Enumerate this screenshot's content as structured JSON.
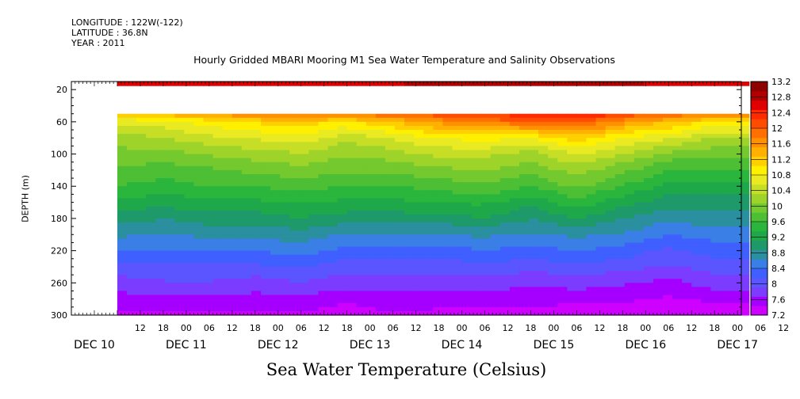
{
  "meta": {
    "longitude": "LONGITUDE : 122W(-122)",
    "latitude": "LATITUDE : 36.8N",
    "year": "YEAR : 2011"
  },
  "colors": {
    "scale": [
      "#ce00ff",
      "#a500ff",
      "#7c3cff",
      "#5a55ff",
      "#3f5fff",
      "#3a7fe6",
      "#2a8f9f",
      "#1e9a6a",
      "#1ea84a",
      "#2ab53c",
      "#4cbf34",
      "#74c92e",
      "#9ed42a",
      "#c6df26",
      "#eaea22",
      "#fff000",
      "#ffd000",
      "#ffb000",
      "#ff9000",
      "#ff7000",
      "#ff4c00",
      "#ff2a00",
      "#e00000",
      "#b00000",
      "#8c0000"
    ]
  },
  "chart_data": {
    "type": "heatmap",
    "title": "Hourly Gridded MBARI Mooring M1 Sea Water Temperature and Salinity Observations",
    "xlabel": "Sea Water Temperature (Celsius)",
    "ylabel": "DEPTH (m)",
    "ylim": [
      300,
      10
    ],
    "y_ticks": [
      20,
      60,
      100,
      140,
      180,
      220,
      260,
      300
    ],
    "hour_ticks": [
      "12",
      "18",
      "00",
      "06",
      "12",
      "18",
      "00",
      "06",
      "12",
      "18",
      "00",
      "06",
      "12",
      "18",
      "00",
      "06",
      "12",
      "18",
      "00",
      "06",
      "12",
      "18",
      "00",
      "06",
      "12",
      "18",
      "00",
      "06",
      "12",
      "18",
      "00",
      "06"
    ],
    "day_labels": [
      "DEC 10",
      "DEC 11",
      "DEC 12",
      "DEC 13",
      "DEC 14",
      "DEC 15",
      "DEC 16",
      "DEC 17"
    ],
    "colorbar_ticks": [
      "13.2",
      "12.8",
      "12.4",
      "12",
      "11.6",
      "11.2",
      "10.8",
      "10.4",
      "10",
      "9.6",
      "9.2",
      "8.8",
      "8.4",
      "8",
      "7.6",
      "7.2"
    ],
    "colorbar_min": 7.2,
    "colorbar_max": 13.2,
    "data_start_hour": 78,
    "depths": [
      10,
      20,
      40,
      50,
      60,
      80,
      100,
      120,
      140,
      160,
      180,
      200,
      220,
      240,
      260,
      280,
      300
    ],
    "hours": [
      78,
      90,
      102,
      114,
      126,
      138,
      150,
      162,
      174,
      186,
      198,
      210,
      222,
      234
    ],
    "temperature": [
      [
        12.6,
        12.5,
        12.6,
        12.6,
        12.6,
        12.7,
        12.7,
        12.8,
        12.9,
        12.9,
        12.9,
        12.8,
        12.7,
        12.6
      ],
      [
        12.5,
        12.5,
        12.5,
        12.6,
        12.6,
        12.6,
        12.7,
        12.8,
        12.8,
        12.9,
        12.8,
        12.7,
        12.6,
        12.5
      ],
      [
        null,
        null,
        null,
        null,
        null,
        null,
        null,
        null,
        null,
        null,
        null,
        null,
        null,
        null
      ],
      [
        11.2,
        11.4,
        11.6,
        11.8,
        11.9,
        11.8,
        12.0,
        12.2,
        12.3,
        12.4,
        12.6,
        12.2,
        12.0,
        11.8
      ],
      [
        10.6,
        10.7,
        10.9,
        11.1,
        11.2,
        11.0,
        11.3,
        11.6,
        11.8,
        12.0,
        12.1,
        11.6,
        11.3,
        11.0
      ],
      [
        10.2,
        10.3,
        10.5,
        10.6,
        10.7,
        10.4,
        10.6,
        10.8,
        10.9,
        10.8,
        11.2,
        10.8,
        10.6,
        10.3
      ],
      [
        10.0,
        10.0,
        10.1,
        10.2,
        10.3,
        10.1,
        10.2,
        10.4,
        10.4,
        10.2,
        10.6,
        10.3,
        10.0,
        9.9
      ],
      [
        9.8,
        9.7,
        9.8,
        9.9,
        10.0,
        9.9,
        9.9,
        10.0,
        10.1,
        9.9,
        10.2,
        9.9,
        9.6,
        9.6
      ],
      [
        9.6,
        9.5,
        9.6,
        9.6,
        9.7,
        9.6,
        9.6,
        9.7,
        9.8,
        9.6,
        9.9,
        9.6,
        9.3,
        9.3
      ],
      [
        9.3,
        9.2,
        9.3,
        9.3,
        9.4,
        9.3,
        9.3,
        9.4,
        9.4,
        9.2,
        9.5,
        9.2,
        9.0,
        9.0
      ],
      [
        9.0,
        8.9,
        9.0,
        9.0,
        9.1,
        9.0,
        9.0,
        9.0,
        9.1,
        8.9,
        9.1,
        8.9,
        8.7,
        8.8
      ],
      [
        8.7,
        8.6,
        8.7,
        8.7,
        8.8,
        8.6,
        8.6,
        8.6,
        8.7,
        8.6,
        8.7,
        8.6,
        8.4,
        8.5
      ],
      [
        8.4,
        8.4,
        8.4,
        8.4,
        8.5,
        8.3,
        8.3,
        8.3,
        8.4,
        8.3,
        8.4,
        8.3,
        8.1,
        8.3
      ],
      [
        8.1,
        8.1,
        8.1,
        8.1,
        8.2,
        8.0,
        8.0,
        8.0,
        8.1,
        8.0,
        8.1,
        8.0,
        7.9,
        8.0
      ],
      [
        7.8,
        7.9,
        7.9,
        7.8,
        7.9,
        7.8,
        7.8,
        7.8,
        7.8,
        7.7,
        7.8,
        7.7,
        7.6,
        7.8
      ],
      [
        7.6,
        7.6,
        7.6,
        7.6,
        7.6,
        7.5,
        7.6,
        7.5,
        7.6,
        7.5,
        7.5,
        7.5,
        7.4,
        7.5
      ],
      [
        7.4,
        7.4,
        7.4,
        7.4,
        7.4,
        7.3,
        7.4,
        7.4,
        7.3,
        7.4,
        7.3,
        7.3,
        7.2,
        7.3
      ]
    ]
  }
}
